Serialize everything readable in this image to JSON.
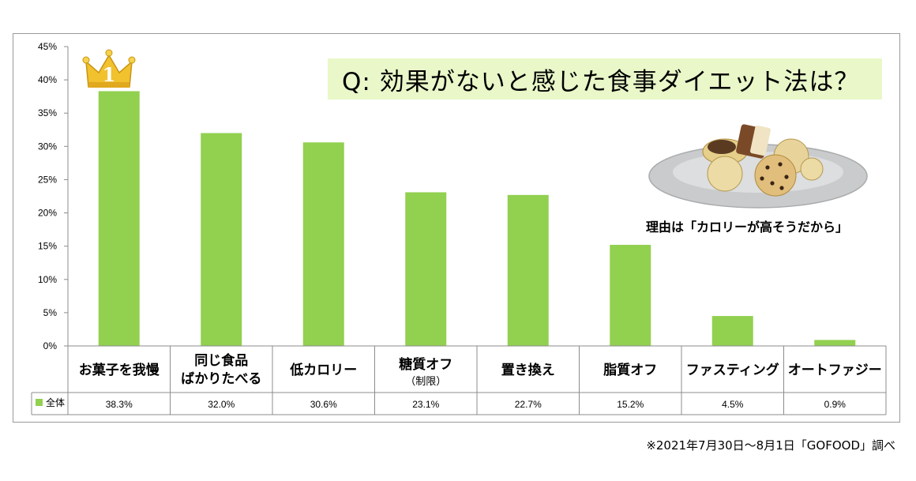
{
  "title": "Q: 効果がないと感じた食事ダイエット法は？",
  "annotation": "理由は「カロリーが高そうだから」",
  "source_note": "※2021年7月30日～8月1日「GOFOOD」調べ",
  "rank_badge": "1",
  "colors": {
    "bar": "#92d050",
    "title_bg": "#e9f7c9",
    "crown": "#f2c12e"
  },
  "icons": {
    "crown": "crown-icon",
    "cookies": "cookie-plate-image"
  },
  "chart_data": {
    "type": "bar",
    "categories": [
      {
        "label": "お菓子を我慢",
        "lines": [
          "お菓子を我慢"
        ]
      },
      {
        "label": "同じ食品ばかりたべる",
        "lines": [
          "同じ食品",
          "ばかりたべる"
        ]
      },
      {
        "label": "低カロリー",
        "lines": [
          "低カロリー"
        ]
      },
      {
        "label": "糖質オフ(制限)",
        "lines": [
          "糖質オフ"
        ],
        "sub": "（制限）"
      },
      {
        "label": "置き換え",
        "lines": [
          "置き換え"
        ]
      },
      {
        "label": "脂質オフ",
        "lines": [
          "脂質オフ"
        ]
      },
      {
        "label": "ファスティング",
        "lines": [
          "ファスティング"
        ]
      },
      {
        "label": "オートファジー",
        "lines": [
          "オートファジー"
        ]
      }
    ],
    "series": [
      {
        "name": "全体",
        "values": [
          38.3,
          32.0,
          30.6,
          23.1,
          22.7,
          15.2,
          4.5,
          0.9
        ],
        "value_labels": [
          "38.3%",
          "32.0%",
          "30.6%",
          "23.1%",
          "22.7%",
          "15.2%",
          "4.5%",
          "0.9%"
        ]
      }
    ],
    "y_ticks": [
      "0%",
      "5%",
      "10%",
      "15%",
      "20%",
      "25%",
      "30%",
      "35%",
      "40%",
      "45%"
    ],
    "ylim": [
      0,
      45
    ],
    "grid": false,
    "legend": "data-table"
  }
}
